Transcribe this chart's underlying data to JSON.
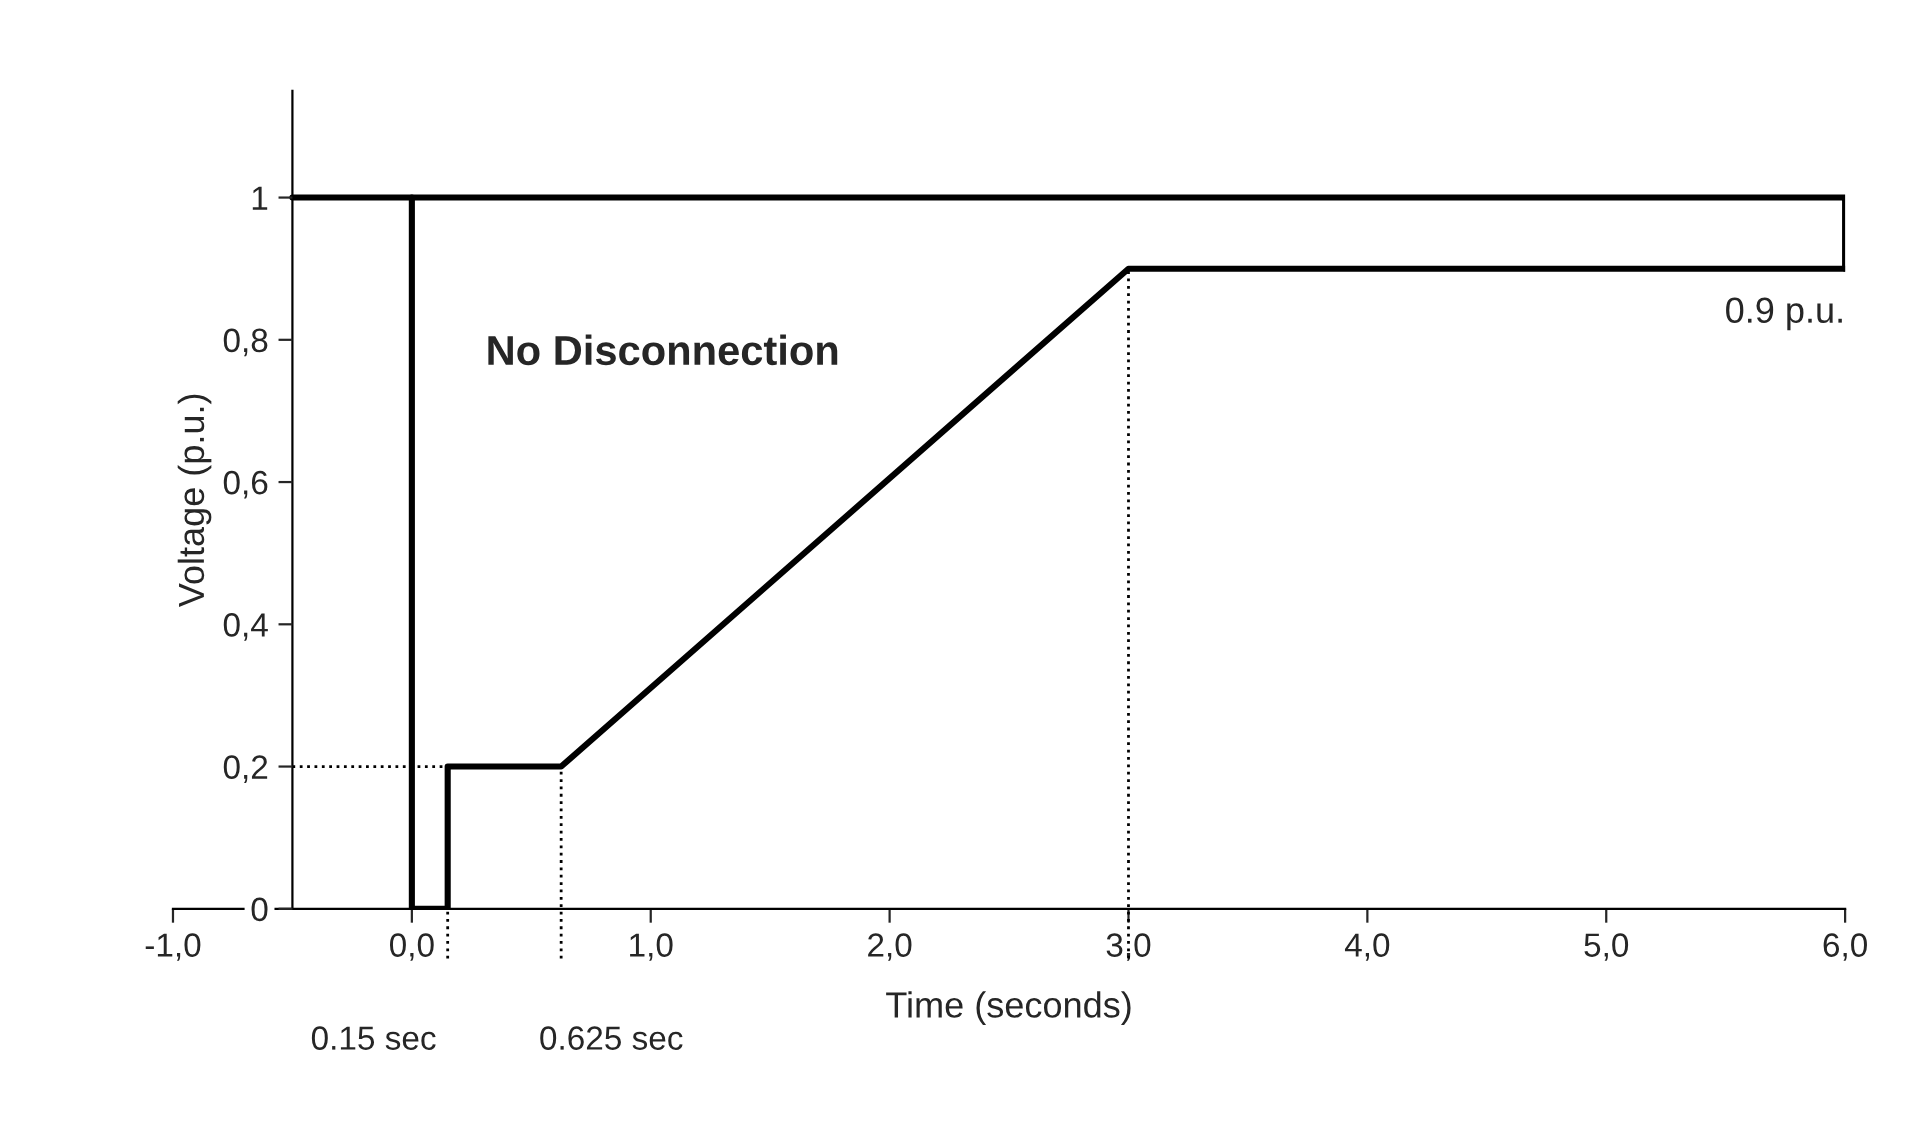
{
  "chart_data": {
    "type": "line",
    "xlabel": "Time (seconds)",
    "ylabel": "Voltage (p.u.)",
    "series": [
      {
        "color": "#000000",
        "x": [
          -0.5,
          0.0,
          0.0,
          0.15,
          0.15,
          0.625,
          3.0,
          6.0
        ],
        "values": [
          1,
          1,
          0,
          0,
          0.2,
          0.2,
          0.9,
          0.9
        ]
      },
      {
        "color": "#000000",
        "x": [
          0.0,
          6.0,
          6.0
        ],
        "values": [
          1,
          1,
          0.9
        ]
      }
    ],
    "xlim": [
      -1.0,
      6.0
    ],
    "ylim": [
      0,
      1.15
    ],
    "xticks": [
      {
        "value": -1.0,
        "label": "-1,0"
      },
      {
        "value": 0.0,
        "label": "0,0"
      },
      {
        "value": 1.0,
        "label": "1,0"
      },
      {
        "value": 2.0,
        "label": "2,0"
      },
      {
        "value": 3.0,
        "label": "3,0"
      },
      {
        "value": 4.0,
        "label": "4,0"
      },
      {
        "value": 5.0,
        "label": "5,0"
      },
      {
        "value": 6.0,
        "label": "6,0"
      }
    ],
    "yticks": [
      0,
      {
        "value": 0.2,
        "label": "0,2"
      },
      {
        "value": 0.4,
        "label": "0,4"
      },
      {
        "value": 0.6,
        "label": "0,6"
      },
      {
        "value": 0.8,
        "label": "0,8"
      },
      1
    ],
    "ref_lines": [
      {
        "axis": "x",
        "value": 0.15,
        "label": "0.15 sec",
        "line_style": "dotted"
      },
      {
        "axis": "x",
        "value": 0.625,
        "label": "0.625 sec",
        "line_style": "dotted"
      },
      {
        "axis": "x",
        "value": 3.0,
        "line_style": "dotted"
      },
      {
        "axis": "y",
        "value": 0.2,
        "line_style": "dotted"
      }
    ],
    "annotations": [
      "No Disconnection",
      {
        "text": "0.9 p.u.",
        "x": 6.0,
        "y": 0.9
      }
    ],
    "grid": false,
    "legend": false,
    "marker": "none",
    "line_style": "solid"
  }
}
